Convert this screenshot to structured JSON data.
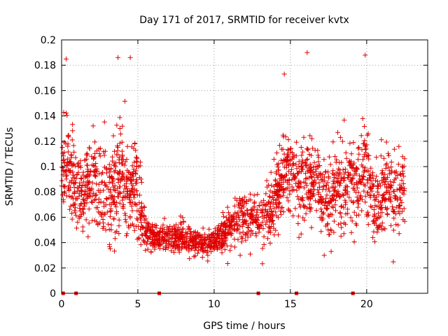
{
  "chart_data": {
    "type": "scatter",
    "title": "Day 171 of 2017, SRMTID for receiver kvtx",
    "xlabel": "GPS time / hours",
    "ylabel": "SRMTID / TECUs",
    "xlim": [
      0,
      24
    ],
    "ylim": [
      0,
      0.2
    ],
    "x_ticks": [
      0,
      5,
      10,
      15,
      20
    ],
    "x_tick_labels": [
      "0",
      "5",
      "10",
      "15",
      "20"
    ],
    "y_ticks": [
      0,
      0.02,
      0.04,
      0.06,
      0.08,
      0.1,
      0.12,
      0.14,
      0.16,
      0.18,
      0.2
    ],
    "y_tick_labels": [
      "0",
      "0.02",
      "0.04",
      "0.06",
      "0.08",
      "0.1",
      "0.12",
      "0.14",
      "0.16",
      "0.18",
      "0.2"
    ],
    "grid": true,
    "marker": "+",
    "series_color": "#e00000",
    "zero_value_times": [
      0.1,
      0.95,
      6.4,
      12.9,
      15.4,
      19.1
    ],
    "trend_profile": {
      "x": [
        0,
        0.5,
        1,
        1.5,
        2,
        2.5,
        3,
        3.5,
        4,
        4.5,
        5,
        5.5,
        6,
        6.5,
        7,
        7.5,
        8,
        8.5,
        9,
        9.5,
        10,
        10.5,
        11,
        11.5,
        12,
        12.5,
        13,
        13.5,
        14,
        14.5,
        15,
        15.5,
        16,
        16.5,
        17,
        17.5,
        18,
        18.5,
        19,
        19.5,
        20,
        20.5,
        21,
        21.5,
        22,
        22.5
      ],
      "median": [
        0.1,
        0.095,
        0.085,
        0.08,
        0.095,
        0.085,
        0.08,
        0.085,
        0.09,
        0.085,
        0.08,
        0.05,
        0.045,
        0.042,
        0.044,
        0.043,
        0.045,
        0.042,
        0.04,
        0.038,
        0.04,
        0.045,
        0.05,
        0.058,
        0.06,
        0.058,
        0.055,
        0.062,
        0.075,
        0.09,
        0.095,
        0.085,
        0.09,
        0.088,
        0.08,
        0.075,
        0.085,
        0.08,
        0.09,
        0.085,
        0.1,
        0.07,
        0.08,
        0.085,
        0.075,
        0.09
      ],
      "spread": [
        0.03,
        0.03,
        0.025,
        0.025,
        0.03,
        0.03,
        0.035,
        0.035,
        0.035,
        0.035,
        0.03,
        0.012,
        0.01,
        0.01,
        0.01,
        0.01,
        0.01,
        0.01,
        0.01,
        0.01,
        0.01,
        0.012,
        0.014,
        0.016,
        0.016,
        0.016,
        0.016,
        0.018,
        0.022,
        0.025,
        0.028,
        0.028,
        0.03,
        0.025,
        0.025,
        0.025,
        0.025,
        0.025,
        0.028,
        0.03,
        0.03,
        0.025,
        0.025,
        0.025,
        0.025,
        0.025
      ]
    },
    "peak_values": [
      {
        "x": 0.3,
        "y": 0.185
      },
      {
        "x": 3.7,
        "y": 0.186
      },
      {
        "x": 4.5,
        "y": 0.186
      },
      {
        "x": 14.6,
        "y": 0.173
      },
      {
        "x": 16.1,
        "y": 0.19
      },
      {
        "x": 19.9,
        "y": 0.188
      }
    ],
    "n_points": 2200
  }
}
